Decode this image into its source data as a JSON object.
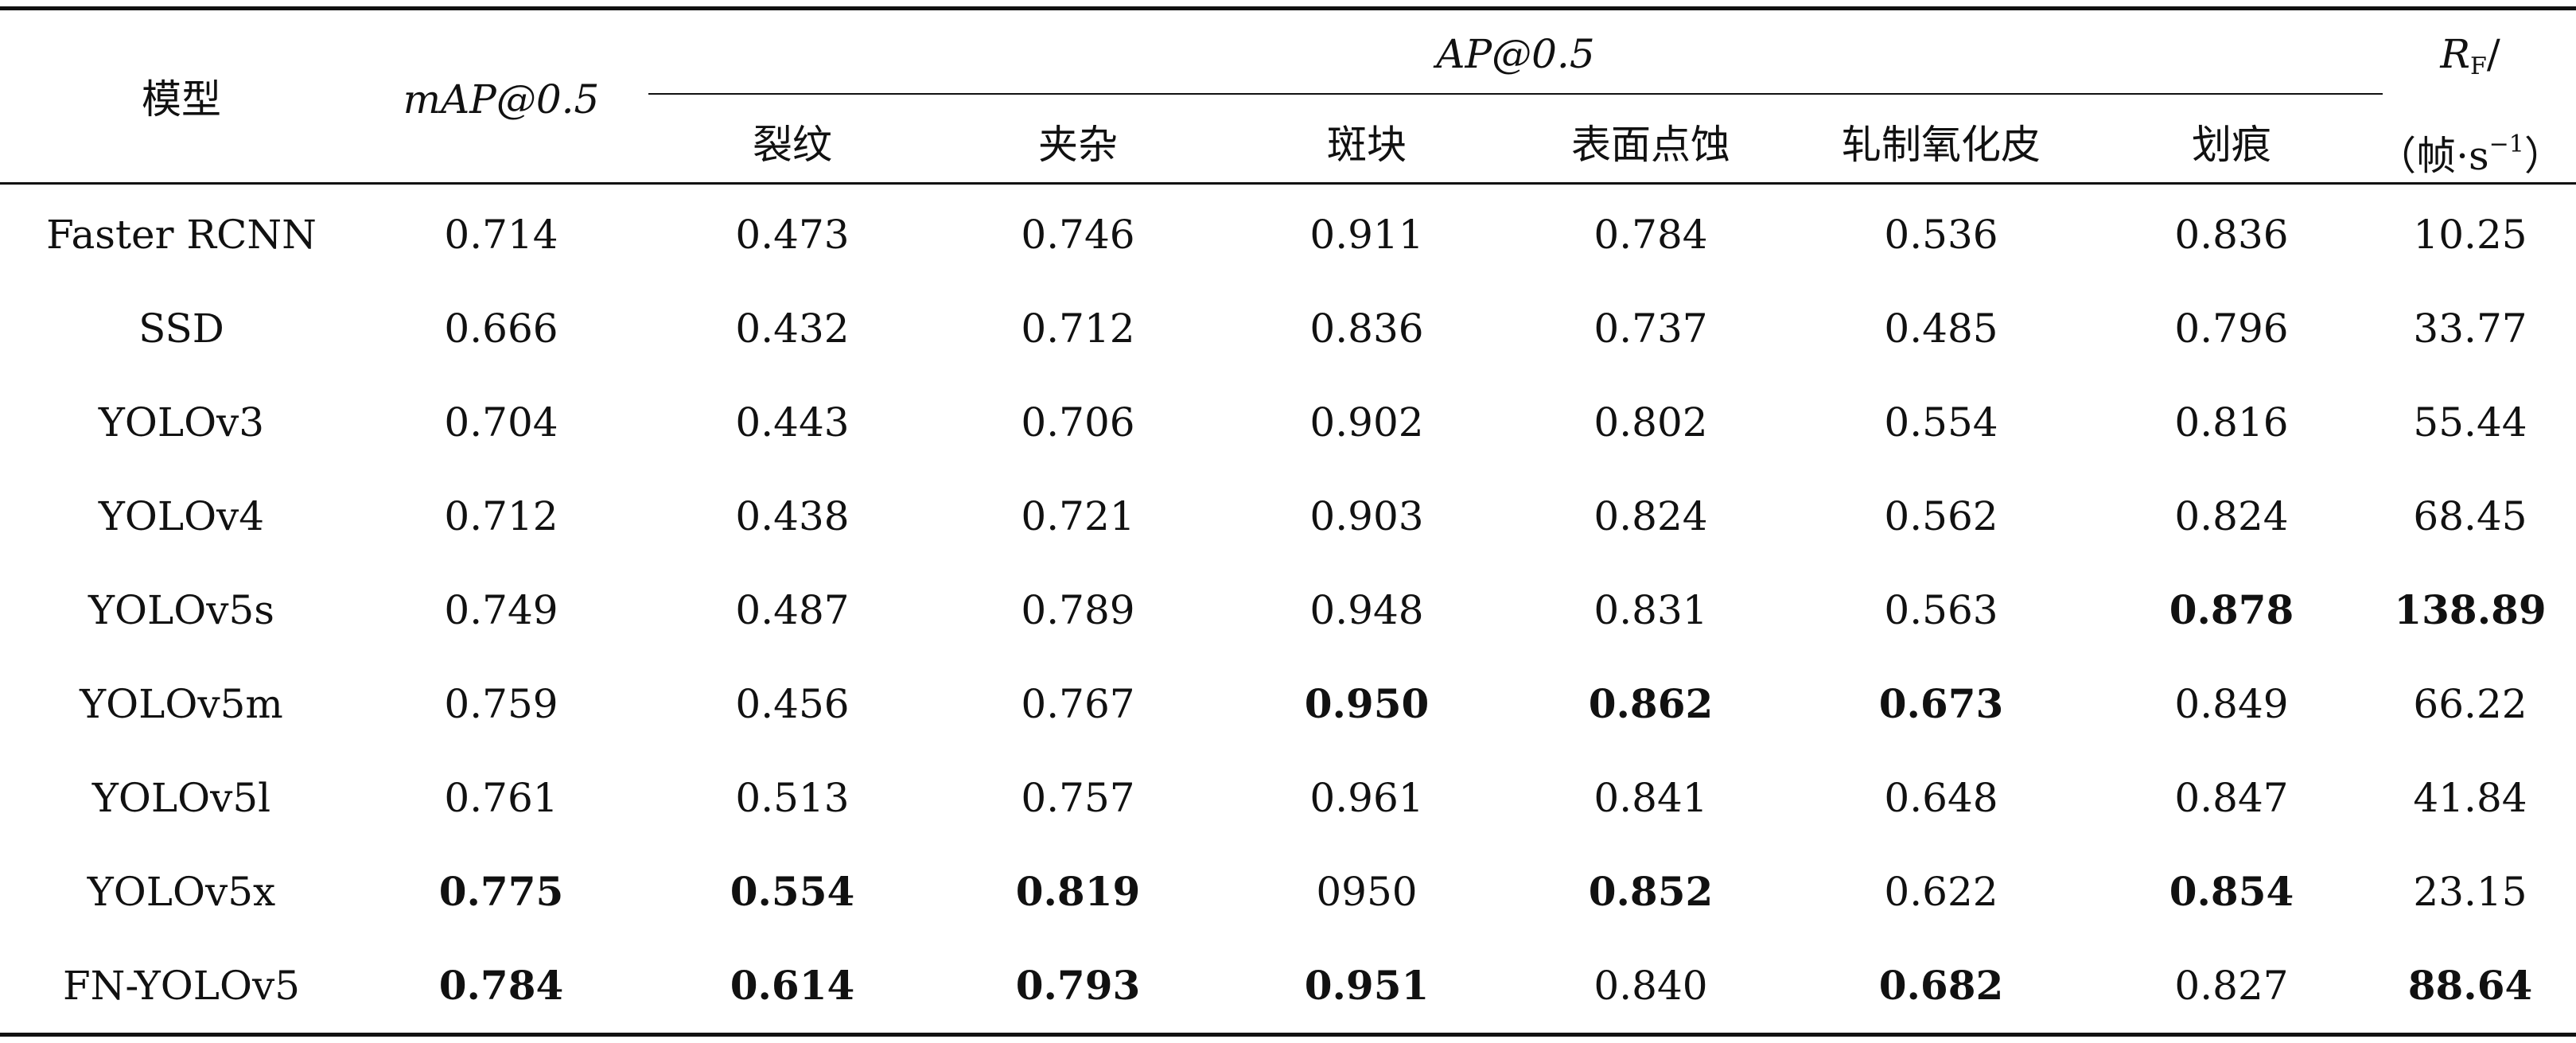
{
  "table": {
    "header": {
      "model": "模型",
      "map": "mAP@0.5",
      "ap_group": "AP@0.5",
      "classes": [
        "裂纹",
        "夹杂",
        "斑块",
        "表面点蚀",
        "轧制氧化皮",
        "划痕"
      ],
      "rf_main": "R",
      "rf_sub": "F",
      "rf_slash": "/",
      "rf_unit_open": "（帧·s",
      "rf_unit_sup": "−1",
      "rf_unit_close": "）"
    },
    "rows": [
      {
        "model": "Faster RCNN",
        "map": "0.714",
        "ap": [
          "0.473",
          "0.746",
          "0.911",
          "0.784",
          "0.536",
          "0.836"
        ],
        "rf": "10.25",
        "bold": []
      },
      {
        "model": "SSD",
        "map": "0.666",
        "ap": [
          "0.432",
          "0.712",
          "0.836",
          "0.737",
          "0.485",
          "0.796"
        ],
        "rf": "33.77",
        "bold": []
      },
      {
        "model": "YOLOv3",
        "map": "0.704",
        "ap": [
          "0.443",
          "0.706",
          "0.902",
          "0.802",
          "0.554",
          "0.816"
        ],
        "rf": "55.44",
        "bold": []
      },
      {
        "model": "YOLOv4",
        "map": "0.712",
        "ap": [
          "0.438",
          "0.721",
          "0.903",
          "0.824",
          "0.562",
          "0.824"
        ],
        "rf": "68.45",
        "bold": []
      },
      {
        "model": "YOLOv5s",
        "map": "0.749",
        "ap": [
          "0.487",
          "0.789",
          "0.948",
          "0.831",
          "0.563",
          "0.878"
        ],
        "rf": "138.89",
        "bold": [
          "ap5",
          "rf"
        ]
      },
      {
        "model": "YOLOv5m",
        "map": "0.759",
        "ap": [
          "0.456",
          "0.767",
          "0.950",
          "0.862",
          "0.673",
          "0.849"
        ],
        "rf": "66.22",
        "bold": [
          "ap2",
          "ap3",
          "ap4"
        ]
      },
      {
        "model": "YOLOv5l",
        "map": "0.761",
        "ap": [
          "0.513",
          "0.757",
          "0.961",
          "0.841",
          "0.648",
          "0.847"
        ],
        "rf": "41.84",
        "bold": []
      },
      {
        "model": "YOLOv5x",
        "map": "0.775",
        "ap": [
          "0.554",
          "0.819",
          "0950",
          "0.852",
          "0.622",
          "0.854"
        ],
        "rf": "23.15",
        "bold": [
          "map",
          "ap0",
          "ap1",
          "ap3",
          "ap5"
        ]
      },
      {
        "model": "FN-YOLOv5",
        "map": "0.784",
        "ap": [
          "0.614",
          "0.793",
          "0.951",
          "0.840",
          "0.682",
          "0.827"
        ],
        "rf": "88.64",
        "bold": [
          "map",
          "ap0",
          "ap1",
          "ap2",
          "ap4",
          "rf"
        ]
      }
    ]
  }
}
